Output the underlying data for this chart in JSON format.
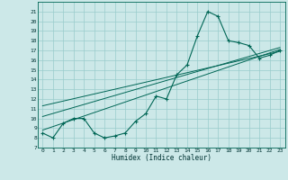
{
  "xlabel": "Humidex (Indice chaleur)",
  "bg_color": "#cce8e8",
  "grid_color": "#99cccc",
  "line_color": "#006655",
  "xlim": [
    -0.5,
    23.5
  ],
  "ylim": [
    7,
    22
  ],
  "yticks": [
    7,
    8,
    9,
    10,
    11,
    12,
    13,
    14,
    15,
    16,
    17,
    18,
    19,
    20,
    21
  ],
  "xticks": [
    0,
    1,
    2,
    3,
    4,
    5,
    6,
    7,
    8,
    9,
    10,
    11,
    12,
    13,
    14,
    15,
    16,
    17,
    18,
    19,
    20,
    21,
    22,
    23
  ],
  "humidex": [
    8.5,
    8.0,
    9.5,
    10.0,
    10.0,
    8.5,
    8.0,
    8.2,
    8.5,
    9.7,
    10.5,
    12.3,
    12.0,
    14.5,
    15.5,
    18.5,
    21.0,
    20.5,
    18.0,
    17.8,
    17.5,
    16.2,
    16.5,
    17.0
  ],
  "reg_line1": [
    [
      0,
      8.8
    ],
    [
      23,
      17.1
    ]
  ],
  "reg_line2": [
    [
      0,
      10.2
    ],
    [
      23,
      17.3
    ]
  ],
  "reg_line3": [
    [
      0,
      11.3
    ],
    [
      23,
      16.9
    ]
  ]
}
